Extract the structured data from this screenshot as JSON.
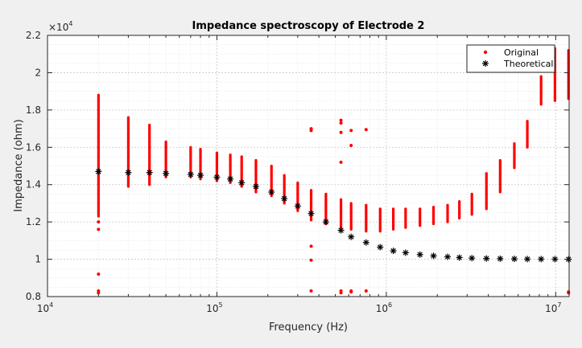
{
  "chart_data": {
    "type": "scatter",
    "title": "Impedance spectroscopy of Electrode 2",
    "xlabel": "Frequency (Hz)",
    "ylabel": "Impedance (ohm)",
    "x_scale": "log",
    "xlim": [
      10000,
      12000000
    ],
    "ylim": [
      8000,
      22000
    ],
    "y_multiplier_label": "×10",
    "y_multiplier_exp": "4",
    "x_ticks": [
      {
        "value": 10000,
        "base": "10",
        "exp": "4"
      },
      {
        "value": 100000,
        "base": "10",
        "exp": "5"
      },
      {
        "value": 1000000,
        "base": "10",
        "exp": "6"
      },
      {
        "value": 10000000,
        "base": "10",
        "exp": "7"
      }
    ],
    "y_ticks": [
      {
        "value": 8000,
        "label": "0.8"
      },
      {
        "value": 10000,
        "label": "1"
      },
      {
        "value": 12000,
        "label": "1.2"
      },
      {
        "value": 14000,
        "label": "1.4"
      },
      {
        "value": 16000,
        "label": "1.6"
      },
      {
        "value": 18000,
        "label": "1.8"
      },
      {
        "value": 20000,
        "label": "2"
      },
      {
        "value": 22000,
        "label": "2.2"
      }
    ],
    "grid": true,
    "minor_grid": true,
    "legend_position": "top-right",
    "series": [
      {
        "name": "Original",
        "marker": "dot",
        "color": "#ff0000",
        "ranges": [
          {
            "x": 20000,
            "low": 12300,
            "high": 18800
          },
          {
            "x": 30000,
            "low": 13900,
            "high": 17600
          },
          {
            "x": 40000,
            "low": 14000,
            "high": 17200
          },
          {
            "x": 50000,
            "low": 14400,
            "high": 16300
          },
          {
            "x": 70000,
            "low": 14400,
            "high": 16000
          },
          {
            "x": 80000,
            "low": 14300,
            "high": 15900
          },
          {
            "x": 100000,
            "low": 14200,
            "high": 15700
          },
          {
            "x": 120000,
            "low": 14100,
            "high": 15600
          },
          {
            "x": 140000,
            "low": 13900,
            "high": 15500
          },
          {
            "x": 170000,
            "low": 13600,
            "high": 15300
          },
          {
            "x": 210000,
            "low": 13400,
            "high": 15000
          },
          {
            "x": 250000,
            "low": 13000,
            "high": 14500
          },
          {
            "x": 300000,
            "low": 12600,
            "high": 14100
          },
          {
            "x": 360000,
            "low": 12100,
            "high": 13700
          },
          {
            "x": 440000,
            "low": 11900,
            "high": 13500
          },
          {
            "x": 540000,
            "low": 11700,
            "high": 13200
          },
          {
            "x": 620000,
            "low": 11600,
            "high": 13000
          },
          {
            "x": 760000,
            "low": 11500,
            "high": 12900
          },
          {
            "x": 920000,
            "low": 11500,
            "high": 12700
          },
          {
            "x": 1100000,
            "low": 11600,
            "high": 12700
          },
          {
            "x": 1300000,
            "low": 11700,
            "high": 12700
          },
          {
            "x": 1580000,
            "low": 11800,
            "high": 12700
          },
          {
            "x": 1900000,
            "low": 11900,
            "high": 12800
          },
          {
            "x": 2300000,
            "low": 12000,
            "high": 12900
          },
          {
            "x": 2700000,
            "low": 12200,
            "high": 13100
          },
          {
            "x": 3200000,
            "low": 12400,
            "high": 13500
          },
          {
            "x": 3900000,
            "low": 12700,
            "high": 14600
          },
          {
            "x": 4700000,
            "low": 13600,
            "high": 15300
          },
          {
            "x": 5700000,
            "low": 14900,
            "high": 16200
          },
          {
            "x": 6800000,
            "low": 16000,
            "high": 17400
          },
          {
            "x": 8200000,
            "low": 18300,
            "high": 19800
          },
          {
            "x": 9900000,
            "low": 18500,
            "high": 21300
          },
          {
            "x": 11900000,
            "low": 18600,
            "high": 21200
          }
        ],
        "points": [
          {
            "x": 20000,
            "y": 8200
          },
          {
            "x": 20000,
            "y": 8300
          },
          {
            "x": 20000,
            "y": 9200
          },
          {
            "x": 20000,
            "y": 11600
          },
          {
            "x": 20000,
            "y": 12000
          },
          {
            "x": 360000,
            "y": 8300
          },
          {
            "x": 360000,
            "y": 9950
          },
          {
            "x": 360000,
            "y": 10700
          },
          {
            "x": 360000,
            "y": 16900
          },
          {
            "x": 360000,
            "y": 17000
          },
          {
            "x": 540000,
            "y": 8200
          },
          {
            "x": 540000,
            "y": 8300
          },
          {
            "x": 540000,
            "y": 15200
          },
          {
            "x": 540000,
            "y": 16800
          },
          {
            "x": 540000,
            "y": 17300
          },
          {
            "x": 540000,
            "y": 17450
          },
          {
            "x": 620000,
            "y": 8250
          },
          {
            "x": 620000,
            "y": 8300
          },
          {
            "x": 620000,
            "y": 16100
          },
          {
            "x": 620000,
            "y": 16900
          },
          {
            "x": 760000,
            "y": 8300
          },
          {
            "x": 760000,
            "y": 16950
          },
          {
            "x": 11900000,
            "y": 8200
          },
          {
            "x": 11900000,
            "y": 8250
          }
        ]
      },
      {
        "name": "Theoretical",
        "marker": "asterisk",
        "color": "#000000",
        "x": [
          20000,
          30000,
          40000,
          50000,
          70000,
          80000,
          100000,
          120000,
          140000,
          170000,
          210000,
          250000,
          300000,
          360000,
          440000,
          540000,
          620000,
          760000,
          920000,
          1100000,
          1300000,
          1580000,
          1900000,
          2300000,
          2700000,
          3200000,
          3900000,
          4700000,
          5700000,
          6800000,
          8200000,
          9900000,
          11900000
        ],
        "y": [
          14700,
          14650,
          14650,
          14600,
          14550,
          14500,
          14400,
          14300,
          14100,
          13900,
          13600,
          13250,
          12850,
          12450,
          12000,
          11550,
          11200,
          10900,
          10650,
          10450,
          10350,
          10250,
          10180,
          10130,
          10090,
          10060,
          10040,
          10030,
          10020,
          10010,
          10010,
          10005,
          10000
        ]
      }
    ]
  }
}
